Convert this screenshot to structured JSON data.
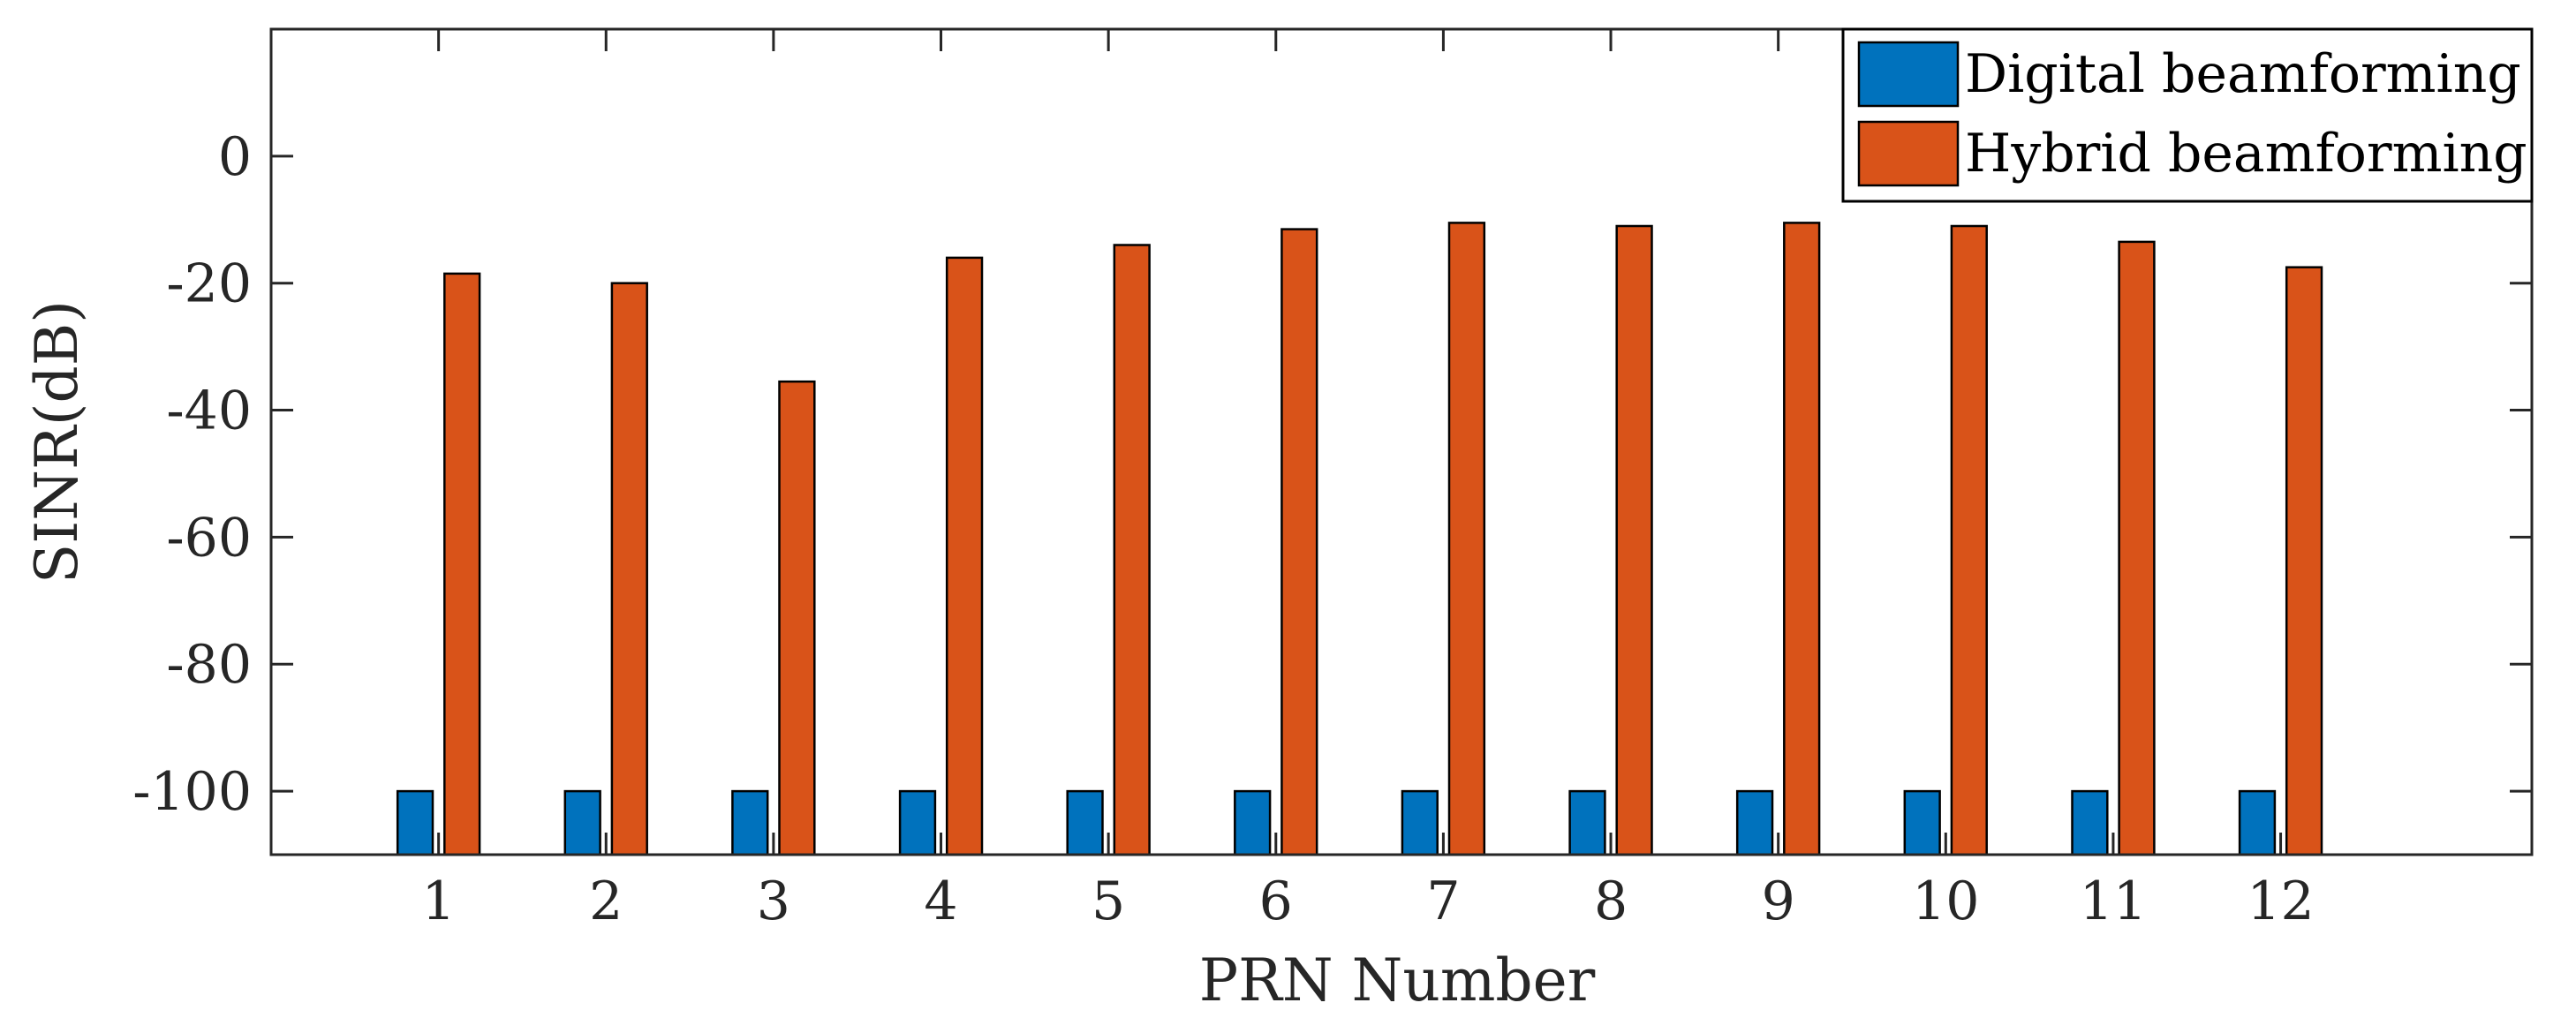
{
  "chart_data": {
    "type": "bar",
    "title": "",
    "xlabel": "PRN Number",
    "ylabel": "SINR(dB)",
    "categories": [
      "1",
      "2",
      "3",
      "4",
      "5",
      "6",
      "7",
      "8",
      "9",
      "10",
      "11",
      "12"
    ],
    "ylim": [
      -110,
      20
    ],
    "yticks": [
      0,
      -20,
      -40,
      -60,
      -80,
      -100
    ],
    "yticks_labels": [
      "0",
      "-20",
      "-40",
      "-60",
      "-80",
      "-100"
    ],
    "baseline": -110,
    "grid": false,
    "legend_position": "top-right",
    "series": [
      {
        "name": "Digital beamforming",
        "color": "#0072BD",
        "values": [
          -100,
          -100,
          -100,
          -100,
          -100,
          -100,
          -100,
          -100,
          -100,
          -100,
          -100,
          -100
        ]
      },
      {
        "name": "Hybrid beamforming",
        "color": "#D95319",
        "values": [
          -18.5,
          -20,
          -35.5,
          -16,
          -14,
          -11.5,
          -10.5,
          -11,
          -10.5,
          -11,
          -13.5,
          -17.5
        ]
      }
    ]
  }
}
